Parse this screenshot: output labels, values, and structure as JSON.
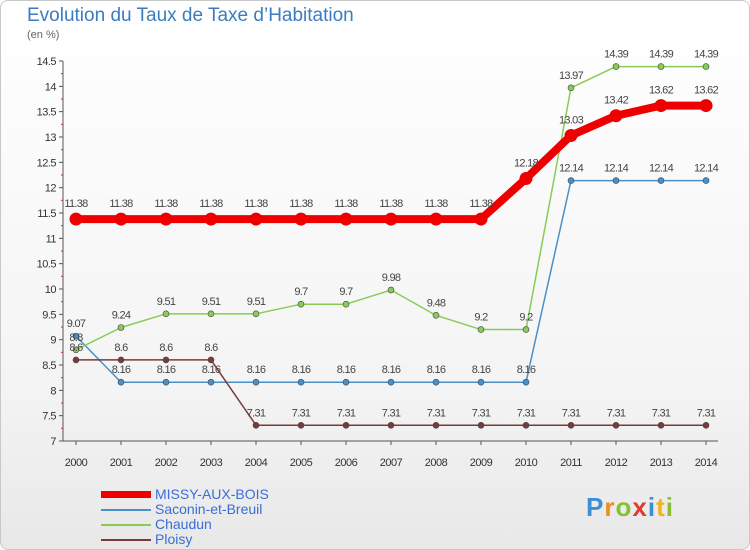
{
  "title": "Evolution du Taux de Taxe d’Habitation",
  "unit_label": "(en %)",
  "logo": {
    "text": "Proxiti"
  },
  "chart_data": {
    "type": "line",
    "title": "Evolution du Taux de Taxe d’Habitation",
    "ylabel": "(en %)",
    "xlabel": "",
    "ylim": [
      7,
      14.5
    ],
    "ytick_step": 0.5,
    "grid": false,
    "legend_position": "bottom-left",
    "categories": [
      "2000",
      "2001",
      "2002",
      "2003",
      "2004",
      "2005",
      "2006",
      "2007",
      "2008",
      "2009",
      "2010",
      "2011",
      "2012",
      "2013",
      "2014"
    ],
    "yticks": [
      "7",
      "7.5",
      "8",
      "8.5",
      "9",
      "9.5",
      "10",
      "10.5",
      "11",
      "11.5",
      "12",
      "12.5",
      "13",
      "13.5",
      "14",
      "14.5"
    ],
    "series": [
      {
        "name": "MISSY-AUX-BOIS",
        "color": "#ee0000",
        "bold": true,
        "values": [
          11.38,
          11.38,
          11.38,
          11.38,
          11.38,
          11.38,
          11.38,
          11.38,
          11.38,
          11.38,
          12.18,
          13.03,
          13.42,
          13.62,
          13.62
        ],
        "labels": [
          "11.38",
          "11.38",
          "11.38",
          "11.38",
          "11.38",
          "11.38",
          "11.38",
          "11.38",
          "11.38",
          "11.38",
          "12.18",
          "13.03",
          "13.42",
          "13.62",
          "13.62"
        ]
      },
      {
        "name": "Saconin-et-Breuil",
        "color": "#4a90c8",
        "bold": false,
        "values": [
          9.07,
          8.16,
          8.16,
          8.16,
          8.16,
          8.16,
          8.16,
          8.16,
          8.16,
          8.16,
          8.16,
          12.14,
          12.14,
          12.14,
          12.14
        ],
        "labels": [
          "9.07",
          "8.16",
          "8.16",
          "8.16",
          "8.16",
          "8.16",
          "8.16",
          "8.16",
          "8.16",
          "8.16",
          "8.16",
          "12.14",
          "12.14",
          "12.14",
          "12.14"
        ]
      },
      {
        "name": "Chaudun",
        "color": "#88cc55",
        "bold": false,
        "values": [
          8.8,
          9.24,
          9.51,
          9.51,
          9.51,
          9.7,
          9.7,
          9.98,
          9.48,
          9.2,
          9.2,
          13.97,
          14.39,
          14.39,
          14.39
        ],
        "labels": [
          "8.8",
          "9.24",
          "9.51",
          "9.51",
          "9.51",
          "9.7",
          "9.7",
          "9.98",
          "9.48",
          "9.2",
          "9.2",
          "13.97",
          "14.39",
          "14.39",
          "14.39"
        ]
      },
      {
        "name": "Ploisy",
        "color": "#7a3a3a",
        "bold": false,
        "values": [
          8.6,
          8.6,
          8.6,
          8.6,
          7.31,
          7.31,
          7.31,
          7.31,
          7.31,
          7.31,
          7.31,
          7.31,
          7.31,
          7.31,
          7.31
        ],
        "labels": [
          "8.6",
          "8.6",
          "8.6",
          "8.6",
          "7.31",
          "7.31",
          "7.31",
          "7.31",
          "7.31",
          "7.31",
          "7.31",
          "7.31",
          "7.31",
          "7.31",
          "7.31"
        ]
      }
    ]
  }
}
